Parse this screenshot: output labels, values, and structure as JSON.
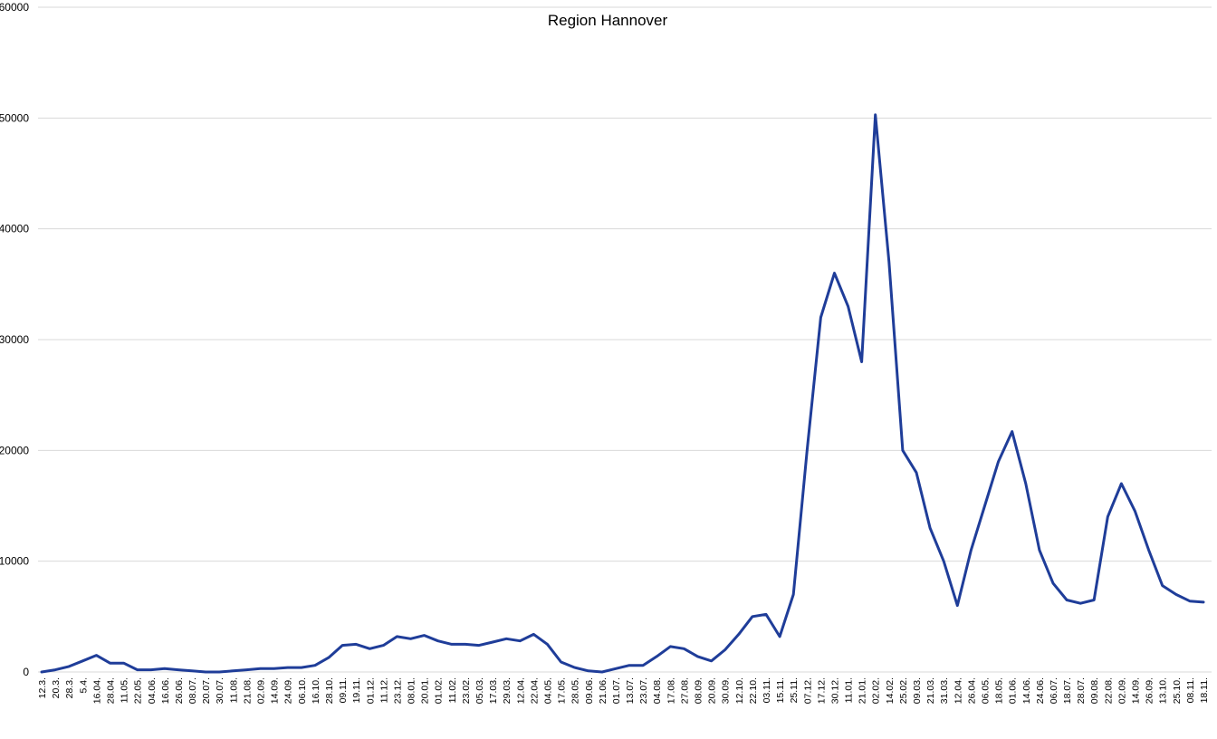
{
  "chart_data": {
    "type": "line",
    "title": "Region Hannover",
    "xlabel": "",
    "ylabel": "",
    "ylim": [
      0,
      60000
    ],
    "y_ticks": [
      0,
      10000,
      20000,
      30000,
      40000,
      50000,
      60000
    ],
    "grid": true,
    "legend": "none",
    "line_color": "#1f3d99",
    "x_tick_labels": [
      "12.3.",
      "20.3.",
      "28.3.",
      "5.4.",
      "16.04.",
      "28.04.",
      "11.05.",
      "22.05.",
      "04.06.",
      "16.06.",
      "26.06.",
      "08.07.",
      "20.07.",
      "30.07.",
      "11.08.",
      "21.08.",
      "02.09.",
      "14.09.",
      "24.09.",
      "06.10.",
      "16.10.",
      "28.10.",
      "09.11.",
      "19.11.",
      "01.12.",
      "11.12.",
      "23.12.",
      "08.01.",
      "20.01.",
      "01.02.",
      "11.02.",
      "23.02.",
      "05.03.",
      "17.03.",
      "29.03.",
      "12.04.",
      "22.04.",
      "04.05.",
      "17.05.",
      "28.05.",
      "09.06.",
      "21.06.",
      "01.07.",
      "13.07.",
      "23.07.",
      "04.08.",
      "17.08.",
      "27.08.",
      "08.09.",
      "20.09.",
      "30.09.",
      "12.10.",
      "22.10.",
      "03.11.",
      "15.11.",
      "25.11.",
      "07.12.",
      "17.12.",
      "30.12.",
      "11.01.",
      "21.01.",
      "02.02.",
      "14.02.",
      "25.02.",
      "09.03.",
      "21.03.",
      "31.03.",
      "12.04.",
      "26.04.",
      "06.05.",
      "18.05.",
      "01.06.",
      "14.06.",
      "24.06.",
      "06.07.",
      "18.07.",
      "28.07.",
      "09.08.",
      "22.08.",
      "02.09.",
      "14.09.",
      "26.09.",
      "13.10.",
      "25.10.",
      "08.11.",
      "18.11."
    ],
    "series": [
      {
        "x": [
          0,
          1,
          2,
          3,
          4,
          5,
          6,
          7,
          8,
          9,
          10,
          11,
          12,
          13,
          14,
          15,
          16,
          17,
          18,
          19,
          20,
          21,
          22,
          23,
          24,
          25,
          26,
          27,
          28,
          29,
          30,
          31,
          32,
          33,
          34,
          35,
          36,
          37,
          38,
          39,
          40,
          41,
          42,
          43,
          44,
          45,
          46,
          47,
          48,
          49,
          50,
          51,
          52,
          53,
          54,
          55,
          56,
          57,
          58,
          59,
          60,
          61,
          62,
          63,
          64,
          65,
          66,
          67,
          68,
          69,
          70,
          71,
          72,
          73,
          74,
          75,
          76,
          77,
          78,
          79,
          80,
          81,
          82,
          83,
          84,
          85
        ],
        "values": [
          0,
          200,
          500,
          1000,
          1500,
          800,
          800,
          200,
          200,
          300,
          200,
          100,
          0,
          0,
          100,
          200,
          300,
          300,
          400,
          400,
          600,
          1300,
          2400,
          2500,
          2100,
          2400,
          3200,
          3000,
          3300,
          2800,
          2500,
          2500,
          2400,
          2700,
          3000,
          2800,
          3400,
          2500,
          900,
          400,
          100,
          0,
          300,
          600,
          600,
          1400,
          2300,
          2100,
          1400,
          1000,
          2000,
          3400,
          5000,
          5200,
          3200,
          7000,
          20000,
          32000,
          36000,
          33000,
          28000,
          50300,
          37000,
          20000,
          18000,
          13000,
          10000,
          6000,
          11000,
          15000,
          19000,
          21700,
          17000,
          11000,
          8000,
          6500,
          6200,
          6500,
          14000,
          17000,
          14500,
          11000,
          7800,
          7000,
          6400,
          6300
        ]
      }
    ]
  }
}
